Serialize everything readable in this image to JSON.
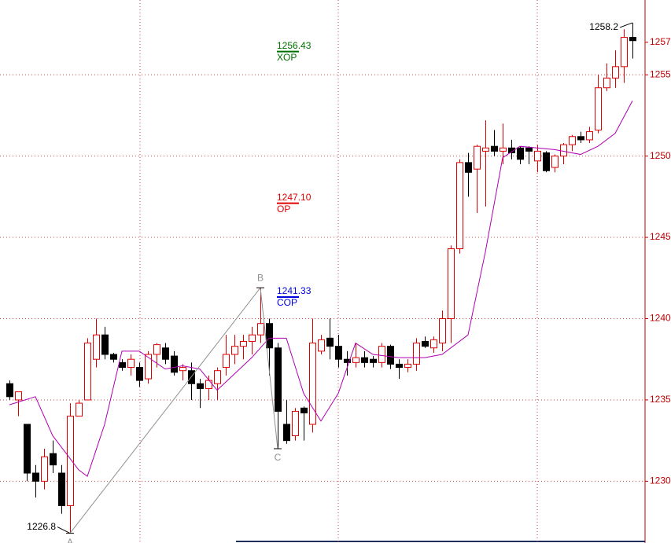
{
  "chart_data": {
    "type": "candlestick",
    "up_color": "#e00000",
    "down_color": "#000000",
    "grid": true,
    "ylim": [
      1226.2,
      1259.6
    ],
    "yticks": [
      1230,
      1235,
      1240,
      1245,
      1250,
      1255
    ],
    "price_label": {
      "value": 1257,
      "label": "1257"
    },
    "candles": {
      "open": [
        1236,
        1235,
        1233.5,
        1230.5,
        1230,
        1231.7,
        1230.5,
        1228.5,
        1234,
        1235,
        1237.5,
        1239,
        1237.8,
        1237.3,
        1237,
        1237,
        1236.3,
        1237.8,
        1238.2,
        1237.7,
        1236.8,
        1236.8,
        1236,
        1235.7,
        1236,
        1237,
        1237.8,
        1238.3,
        1238.6,
        1239,
        1239.7,
        1238.2,
        1233.5,
        1232.8,
        1234.5,
        1233.5,
        1238,
        1238.8,
        1238.3,
        1237.5,
        1237.3,
        1237.6,
        1237.5,
        1237.3,
        1238.3,
        1237.2,
        1237,
        1237.2,
        1238.6,
        1238.2,
        1238.5,
        1240,
        1244.3,
        1249.6,
        1249.2,
        1250.3,
        1250.6,
        1250.3,
        1250.5,
        1250.5,
        1250.5,
        1249.7,
        1250.2,
        1249.3,
        1250,
        1250.7,
        1251.2,
        1251,
        1251.6,
        1254.2,
        1254.8,
        1255.5,
        1257.3
      ],
      "high": [
        1236.2,
        1235.5,
        1233.5,
        1231,
        1232,
        1232.5,
        1231,
        1234.8,
        1235,
        1238.8,
        1240,
        1239.5,
        1237.9,
        1237.5,
        1237.8,
        1237.3,
        1238,
        1238.5,
        1238.5,
        1238,
        1237.2,
        1237.3,
        1236.3,
        1236.5,
        1237,
        1239,
        1239,
        1239,
        1239.5,
        1241.9,
        1240,
        1238.5,
        1235,
        1234.5,
        1234.6,
        1240,
        1239,
        1240,
        1239,
        1238,
        1238.5,
        1238,
        1237.7,
        1238.5,
        1238.4,
        1237.5,
        1237.5,
        1238.8,
        1238.9,
        1238.9,
        1240.5,
        1244.5,
        1249.8,
        1250.2,
        1250.7,
        1252.2,
        1251.6,
        1252,
        1251,
        1250.6,
        1250.6,
        1250.7,
        1250.3,
        1250.1,
        1250.8,
        1251.3,
        1251.5,
        1251.8,
        1255,
        1255.7,
        1256.5,
        1257.8,
        1258.2
      ],
      "low": [
        1235,
        1234,
        1230,
        1229,
        1229.5,
        1230.5,
        1228,
        1226.8,
        1234,
        1235,
        1237,
        1237.5,
        1237.3,
        1236.8,
        1236.5,
        1235.8,
        1236,
        1237,
        1237.2,
        1236.5,
        1236.2,
        1235,
        1234.5,
        1235,
        1235,
        1236.5,
        1237.2,
        1237.5,
        1237.8,
        1238.5,
        1236.5,
        1232,
        1232.3,
        1232.5,
        1232.5,
        1233,
        1237.8,
        1237.5,
        1237,
        1236.5,
        1237,
        1237,
        1237,
        1237,
        1236.9,
        1236.3,
        1236.7,
        1236.8,
        1238.2,
        1237.9,
        1238,
        1238.5,
        1244,
        1247.5,
        1246.5,
        1246.9,
        1250,
        1249.5,
        1249.8,
        1249.5,
        1249.5,
        1249,
        1249,
        1249,
        1249.5,
        1250.3,
        1250.8,
        1250.8,
        1251.4,
        1254,
        1254.2,
        1254.5,
        1256
      ],
      "close": [
        1235.2,
        1235.5,
        1230.5,
        1230,
        1231.5,
        1231,
        1228.5,
        1234,
        1234.8,
        1238.5,
        1239,
        1237.8,
        1237.5,
        1237,
        1237.5,
        1236.2,
        1237.8,
        1238.4,
        1237.5,
        1236.7,
        1237,
        1236,
        1235.7,
        1236.2,
        1236.8,
        1237.8,
        1238.3,
        1238.6,
        1239,
        1239.7,
        1238.2,
        1234.3,
        1232.5,
        1234.3,
        1234.2,
        1238.5,
        1238.7,
        1238.3,
        1237.5,
        1237.3,
        1237.6,
        1237.3,
        1237.3,
        1238.3,
        1237.2,
        1237,
        1237.2,
        1238.5,
        1238.3,
        1238.7,
        1240,
        1244.3,
        1249.6,
        1249,
        1250.6,
        1250.5,
        1250.3,
        1250.5,
        1250.2,
        1249.8,
        1250.3,
        1250.3,
        1249.1,
        1250,
        1250.7,
        1251.2,
        1251,
        1251.5,
        1254.2,
        1254.8,
        1255.5,
        1257.3,
        1257.1
      ]
    },
    "ma": {
      "color": "#b000b0",
      "x": [
        0,
        3,
        5,
        8,
        9,
        11,
        13,
        15,
        18,
        20,
        22,
        24,
        26,
        28,
        30,
        32,
        34,
        36,
        38,
        40,
        42,
        45,
        48,
        50,
        53,
        55,
        57,
        59,
        63,
        66,
        68,
        70,
        72
      ],
      "values": [
        1234.7,
        1235.2,
        1232.8,
        1230.7,
        1230.3,
        1233.5,
        1238,
        1238,
        1236.9,
        1237.1,
        1236.9,
        1235.6,
        1236.6,
        1237.6,
        1238.8,
        1238.8,
        1235.4,
        1233.7,
        1235.4,
        1238.5,
        1237.8,
        1237.6,
        1237.6,
        1237.8,
        1239,
        1244.1,
        1249.9,
        1250.6,
        1250.4,
        1250.1,
        1250.6,
        1251.4,
        1253.4
      ]
    },
    "levels": [
      {
        "value": 1256.43,
        "label": "1256.43",
        "name": "XOP",
        "color": "#007000"
      },
      {
        "value": 1247.1,
        "label": "1247.10",
        "name": "OP",
        "color": "#e00000"
      },
      {
        "value": 1241.33,
        "label": "1241.33",
        "name": "COP",
        "color": "#0000e0"
      }
    ],
    "points": [
      {
        "name": "A",
        "index": 7,
        "value": 1226.8
      },
      {
        "name": "B",
        "index": 29,
        "value": 1241.9
      },
      {
        "name": "C",
        "index": 31,
        "value": 1232
      }
    ],
    "low_label": {
      "index": 7,
      "value": 1226.8,
      "label": "1226.8"
    },
    "high_label": {
      "index": 72,
      "value": 1258.2,
      "label": "1258.2"
    }
  }
}
